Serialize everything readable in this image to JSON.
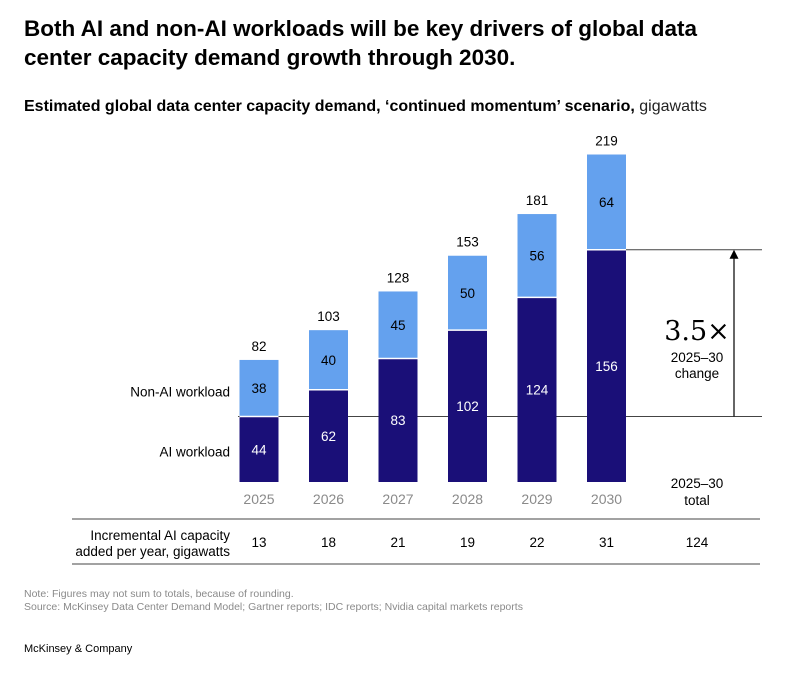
{
  "headline": "Both AI and non-AI workloads will be key drivers of global data center capacity demand growth through 2030.",
  "subtitle": {
    "main": "Estimated global data center capacity demand, ‘continued momentum’ scenario,",
    "unit": "gigawatts"
  },
  "colors": {
    "ai": "#1a0f78",
    "non_ai": "#64a1ee",
    "text_dark": "#000000",
    "axis_gray": "#8a8a8a",
    "rule": "#444444"
  },
  "chart_data": {
    "type": "bar",
    "stacked": true,
    "categories": [
      "2025",
      "2026",
      "2027",
      "2028",
      "2029",
      "2030"
    ],
    "series": [
      {
        "name": "AI workload",
        "values": [
          44,
          62,
          83,
          102,
          124,
          156
        ]
      },
      {
        "name": "Non-AI workload",
        "values": [
          38,
          40,
          45,
          50,
          56,
          64
        ]
      }
    ],
    "totals": [
      82,
      103,
      128,
      153,
      181,
      219
    ],
    "ylim": [
      0,
      219
    ],
    "change_annotation": {
      "value": "3.5×",
      "label_line1": "2025–30",
      "label_line2": "change"
    },
    "total_column_header": {
      "line1": "2025–30",
      "line2": "total"
    },
    "incremental": {
      "label_line1": "Incremental AI capacity",
      "label_line2": "added per year, gigawatts",
      "values": [
        "13",
        "18",
        "21",
        "19",
        "22",
        "31"
      ],
      "total": "124"
    }
  },
  "notes": {
    "note": "Note: Figures may not sum to totals, because of rounding.",
    "source": "Source: McKinsey Data Center Demand Model; Gartner reports; IDC reports; Nvidia capital markets reports"
  },
  "brand": "McKinsey & Company"
}
